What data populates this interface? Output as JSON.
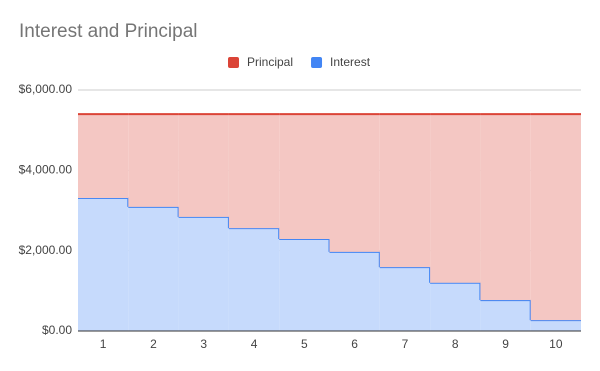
{
  "chart_data": {
    "type": "stepped-area-stacked",
    "title": "Interest and Principal",
    "categories": [
      "1",
      "2",
      "3",
      "4",
      "5",
      "6",
      "7",
      "8",
      "9",
      "10"
    ],
    "series": [
      {
        "name": "Interest",
        "color": "#4285f4",
        "values": [
          3310,
          3090,
          2840,
          2560,
          2290,
          1970,
          1590,
          1200,
          770,
          270
        ]
      },
      {
        "name": "Principal",
        "color": "#db4437",
        "values": [
          2090,
          2310,
          2560,
          2840,
          3110,
          3430,
          3810,
          4200,
          4630,
          5130
        ]
      }
    ],
    "legend_order": [
      1,
      0
    ],
    "ylim": [
      0,
      6000
    ],
    "yticks": [
      {
        "value": 0,
        "label": "$0.00"
      },
      {
        "value": 2000,
        "label": "$2,000.00"
      },
      {
        "value": 4000,
        "label": "$4,000.00"
      },
      {
        "value": 6000,
        "label": "$6,000.00"
      }
    ],
    "grid": true,
    "legend": "top"
  }
}
